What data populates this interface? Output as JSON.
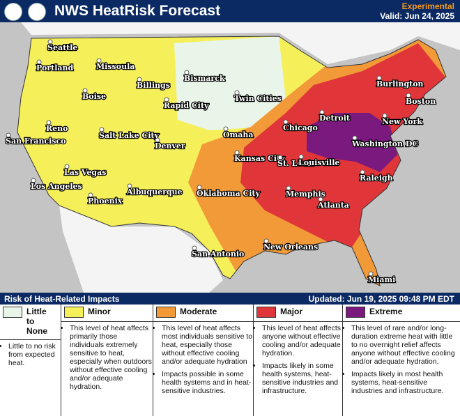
{
  "header": {
    "title": "NWS HeatRisk Forecast",
    "status": "Experimental",
    "valid": "Valid: Jun 24, 2025"
  },
  "cities": [
    "Seattle",
    "Portland",
    "Missoula",
    "Boise",
    "Billings",
    "Bismarck",
    "Rapid City",
    "Twin Cities",
    "Burlington",
    "Boston",
    "Detroit",
    "Chicago",
    "New York",
    "Reno",
    "San Francisco",
    "Salt Lake City",
    "Omaha",
    "Denver",
    "Washington DC",
    "Kansas City",
    "St. Louis",
    "Louisville",
    "Las Vegas",
    "Raleigh",
    "Los Angeles",
    "Albuquerque",
    "Oklahoma City",
    "Memphis",
    "Phoenix",
    "Atlanta",
    "New Orleans",
    "San Antonio",
    "Miami"
  ],
  "legend": {
    "title": "Risk of Heat-Related Impacts",
    "updated": "Updated: Jun 19, 2025 09:48 PM EDT",
    "levels": [
      {
        "name": "Little to None",
        "color": "#e8f5e8",
        "bullets": [
          "Little to no risk from expected heat."
        ]
      },
      {
        "name": "Minor",
        "color": "#f5f05a",
        "bullets": [
          "This level of heat affects primarily those individuals extremely sensitive to heat, especially when outdoors without effective cooling and/or adequate hydration."
        ]
      },
      {
        "name": "Moderate",
        "color": "#f29a38",
        "bullets": [
          "This level of heat affects most individuals sensitive to heat, especially those without effective cooling and/or adequate hydration",
          "Impacts possible in some health systems and in heat-sensitive industries."
        ]
      },
      {
        "name": "Major",
        "color": "#e0363a",
        "bullets": [
          "This level of heat affects anyone without effective cooling and/or adequate hydration.",
          "Impacts likely in some health systems, heat-sensitive industries and infrastructure."
        ]
      },
      {
        "name": "Extreme",
        "color": "#7b1a7e",
        "bullets": [
          "This level of rare and/or long-duration extreme heat with little to no overnight relief affects anyone without effective cooling and/or adequate hydration.",
          "Impacts likely in most health systems, heat-sensitive industries and infrastructure."
        ]
      }
    ]
  }
}
